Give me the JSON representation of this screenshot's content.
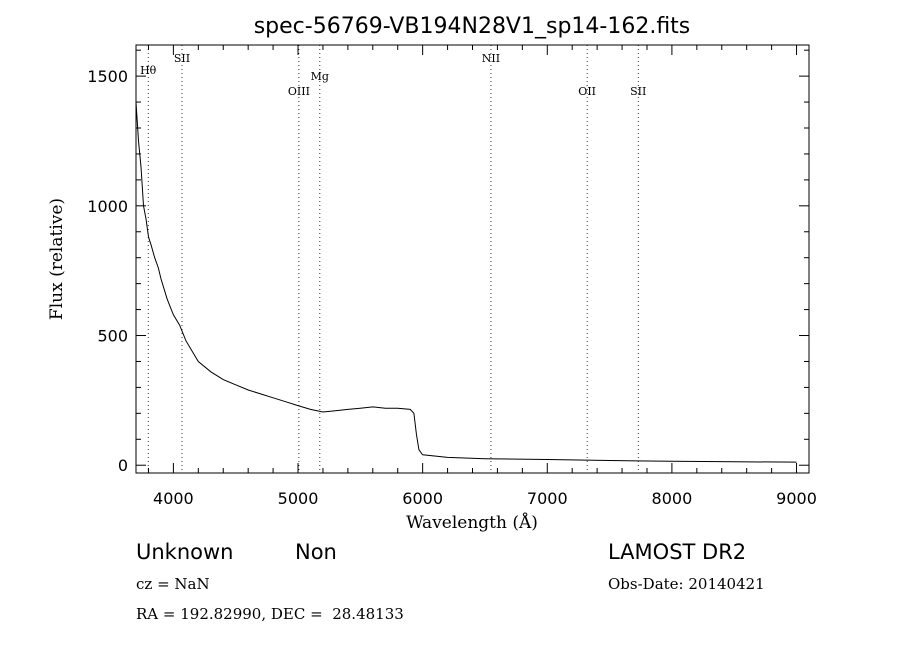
{
  "chart_data": {
    "type": "line",
    "title": "spec-56769-VB194N28V1_sp14-162.fits",
    "xlabel": "Wavelength (Å)",
    "ylabel": "Flux (relative)",
    "xlim": [
      3700,
      9100
    ],
    "ylim": [
      -30,
      1620
    ],
    "xticks": [
      4000,
      5000,
      6000,
      7000,
      8000,
      9000
    ],
    "yticks": [
      0,
      500,
      1000,
      1500
    ],
    "grid": false,
    "lines": [
      {
        "label": "Hθ",
        "x": 3798
      },
      {
        "label": "SII",
        "x": 4069
      },
      {
        "label": "OIII",
        "x": 5007
      },
      {
        "label": "Mg",
        "x": 5175
      },
      {
        "label": "NII",
        "x": 6548
      },
      {
        "label": "OII",
        "x": 7320
      },
      {
        "label": "SII",
        "x": 7730
      }
    ],
    "spectrum": [
      {
        "x": 3700,
        "y": 1400
      },
      {
        "x": 3720,
        "y": 1250
      },
      {
        "x": 3740,
        "y": 1150
      },
      {
        "x": 3760,
        "y": 1000
      },
      {
        "x": 3780,
        "y": 950
      },
      {
        "x": 3800,
        "y": 880
      },
      {
        "x": 3820,
        "y": 850
      },
      {
        "x": 3850,
        "y": 800
      },
      {
        "x": 3880,
        "y": 760
      },
      {
        "x": 3900,
        "y": 720
      },
      {
        "x": 3950,
        "y": 640
      },
      {
        "x": 4000,
        "y": 580
      },
      {
        "x": 4050,
        "y": 540
      },
      {
        "x": 4100,
        "y": 480
      },
      {
        "x": 4150,
        "y": 440
      },
      {
        "x": 4200,
        "y": 400
      },
      {
        "x": 4300,
        "y": 360
      },
      {
        "x": 4400,
        "y": 330
      },
      {
        "x": 4500,
        "y": 310
      },
      {
        "x": 4600,
        "y": 290
      },
      {
        "x": 4700,
        "y": 275
      },
      {
        "x": 4800,
        "y": 260
      },
      {
        "x": 4900,
        "y": 245
      },
      {
        "x": 5000,
        "y": 230
      },
      {
        "x": 5100,
        "y": 215
      },
      {
        "x": 5200,
        "y": 205
      },
      {
        "x": 5300,
        "y": 210
      },
      {
        "x": 5400,
        "y": 215
      },
      {
        "x": 5500,
        "y": 220
      },
      {
        "x": 5600,
        "y": 225
      },
      {
        "x": 5700,
        "y": 220
      },
      {
        "x": 5800,
        "y": 220
      },
      {
        "x": 5900,
        "y": 215
      },
      {
        "x": 5930,
        "y": 200
      },
      {
        "x": 5950,
        "y": 120
      },
      {
        "x": 5970,
        "y": 60
      },
      {
        "x": 6000,
        "y": 40
      },
      {
        "x": 6200,
        "y": 30
      },
      {
        "x": 6500,
        "y": 25
      },
      {
        "x": 7000,
        "y": 22
      },
      {
        "x": 7500,
        "y": 18
      },
      {
        "x": 8000,
        "y": 15
      },
      {
        "x": 8500,
        "y": 13
      },
      {
        "x": 9000,
        "y": 12
      }
    ]
  },
  "footer": {
    "class_label": "Unknown",
    "subclass_label": "Non",
    "survey": "LAMOST DR2",
    "cz": "cz = NaN",
    "obs_date": "Obs-Date: 20140421",
    "coords": "RA = 192.82990, DEC =  28.48133"
  }
}
